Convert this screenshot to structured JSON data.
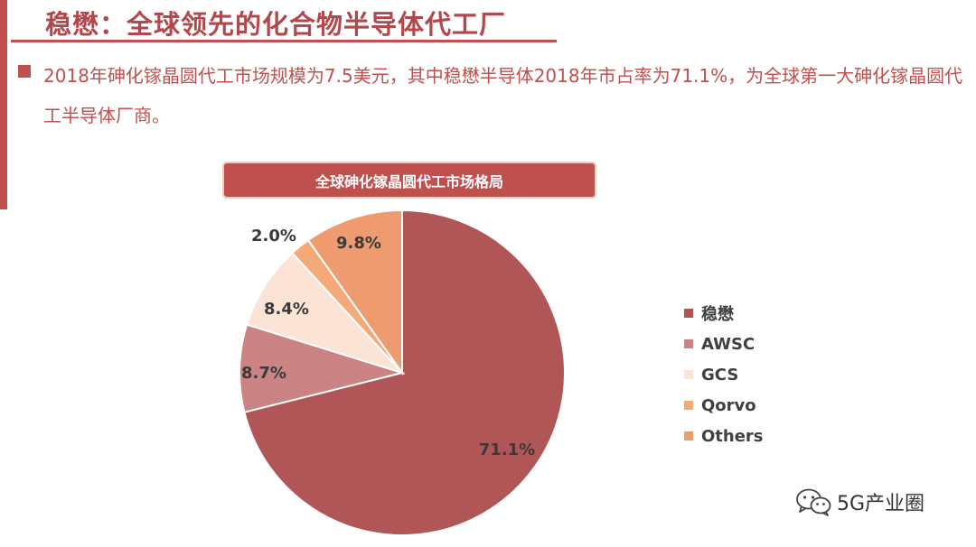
{
  "page": {
    "title": "稳懋：全球领先的化合物半导体代工厂",
    "bullet": "2018年砷化镓晶圆代工市场规模为7.5美元，其中稳懋半导体2018年市占率为71.1%，为全球第一大砷化镓晶圆代工半导体厂商。",
    "watermark": "5G产业圈"
  },
  "chart_data": {
    "type": "pie",
    "title": "全球砷化镓晶圆代工市场格局",
    "slices": [
      {
        "label": "稳懋",
        "value": 71.1,
        "display": "71.1%",
        "color": "#b05656"
      },
      {
        "label": "AWSC",
        "value": 8.7,
        "display": "8.7%",
        "color": "#cb8383"
      },
      {
        "label": "GCS",
        "value": 8.4,
        "display": "8.4%",
        "color": "#fbe4d6"
      },
      {
        "label": "Qorvo",
        "value": 2.0,
        "display": "2.0%",
        "color": "#f4a979"
      },
      {
        "label": "Others",
        "value": 9.8,
        "display": "9.8%",
        "color": "#ee9b6f"
      }
    ],
    "legend_position": "right"
  }
}
